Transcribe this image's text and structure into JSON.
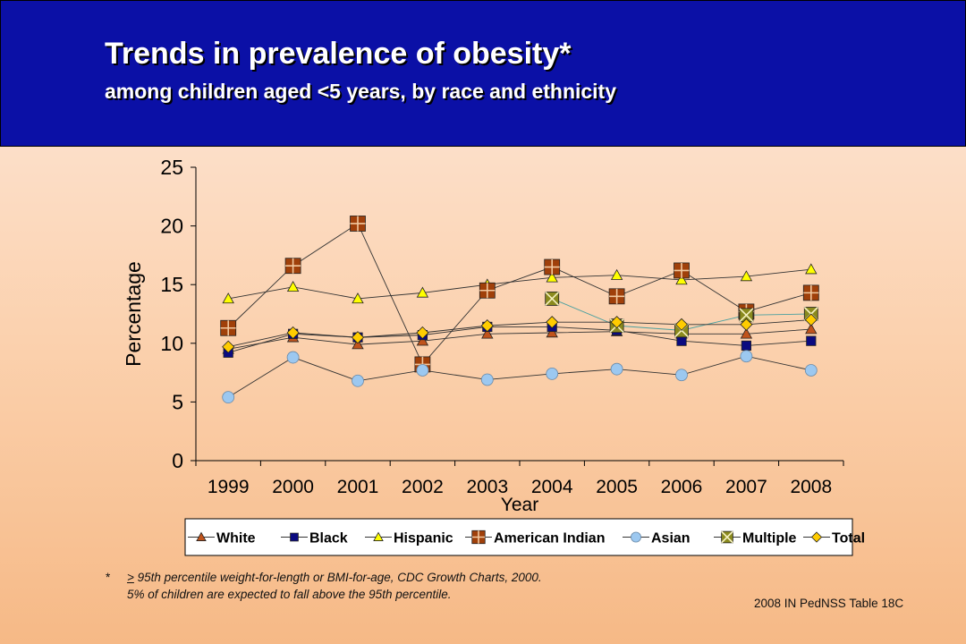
{
  "header": {
    "title": "Trends in prevalence of obesity*",
    "subtitle": "among children aged <5 years, by race and ethnicity"
  },
  "chart_data": {
    "type": "line",
    "xlabel": "Year",
    "ylabel": "Percentage",
    "ylim": [
      0,
      25
    ],
    "yticks": [
      0,
      5,
      10,
      15,
      20,
      25
    ],
    "categories": [
      "1999",
      "2000",
      "2001",
      "2002",
      "2003",
      "2004",
      "2005",
      "2006",
      "2007",
      "2008"
    ],
    "legend_position": "bottom",
    "series": [
      {
        "name": "White",
        "color": "#c0531c",
        "marker": "triangle",
        "values": [
          9.5,
          10.5,
          9.9,
          10.2,
          10.8,
          10.9,
          11.0,
          10.8,
          10.8,
          11.2
        ]
      },
      {
        "name": "Black",
        "color": "#0a0a80",
        "marker": "square",
        "values": [
          9.2,
          10.8,
          10.5,
          10.7,
          11.4,
          11.4,
          11.1,
          10.2,
          9.8,
          10.2
        ]
      },
      {
        "name": "Hispanic",
        "color": "#ffff00",
        "marker": "triangle",
        "values": [
          13.8,
          14.8,
          13.8,
          14.3,
          15.0,
          15.6,
          15.8,
          15.4,
          15.7,
          16.3
        ]
      },
      {
        "name": "American Indian",
        "color": "#a0400a",
        "marker": "squarecross",
        "values": [
          11.3,
          16.6,
          20.2,
          8.2,
          14.5,
          16.5,
          14.0,
          16.2,
          12.7,
          14.3
        ]
      },
      {
        "name": "Asian",
        "color": "#9cc8f0",
        "marker": "circle",
        "values": [
          5.4,
          8.8,
          6.8,
          7.7,
          6.9,
          7.4,
          7.8,
          7.3,
          8.9,
          7.7
        ]
      },
      {
        "name": "Multiple",
        "color": "#8a8a1e",
        "marker": "x",
        "values": [
          null,
          null,
          null,
          null,
          null,
          13.8,
          11.5,
          11.1,
          12.4,
          12.5
        ]
      },
      {
        "name": "Total",
        "color": "#ffcc00",
        "marker": "diamond",
        "values": [
          9.7,
          10.9,
          10.5,
          10.9,
          11.5,
          11.8,
          11.8,
          11.6,
          11.6,
          12.0
        ]
      }
    ]
  },
  "footnote": {
    "star": "*",
    "geq_symbol": ">",
    "line1_rest": " 95th percentile weight-for-length or BMI-for-age, CDC Growth Charts, 2000.",
    "line2": "5% of children are expected to fall above the 95th percentile."
  },
  "source": "2008 IN PedNSS Table 18C"
}
